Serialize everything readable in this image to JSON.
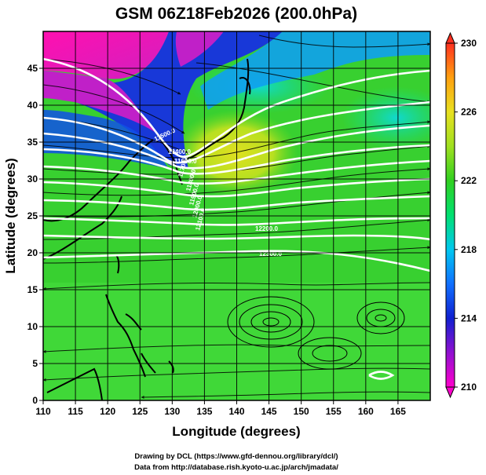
{
  "title": "GSM 06Z18Feb2026 (200.0hPa)",
  "x_axis": {
    "label": "Longitude (degrees)",
    "range": [
      110,
      170
    ],
    "ticks": [
      "110",
      "115",
      "120",
      "125",
      "130",
      "135",
      "140",
      "145",
      "150",
      "155",
      "160",
      "165"
    ]
  },
  "y_axis": {
    "label": "Latitude  (degrees)",
    "range": [
      0,
      50
    ],
    "ticks": [
      "0",
      "5",
      "10",
      "15",
      "20",
      "25",
      "30",
      "35",
      "40",
      "45"
    ]
  },
  "colorbar": {
    "range": [
      210,
      230
    ],
    "ticks": [
      "210",
      "214",
      "218",
      "222",
      "226",
      "230"
    ],
    "colors": [
      "#ff00cc",
      "#9010d0",
      "#1020d0",
      "#1070ff",
      "#00c8f0",
      "#00e070",
      "#30d020",
      "#a0e020",
      "#e8e020",
      "#ffa010",
      "#ff3020"
    ]
  },
  "contours": {
    "color": "#ffffff",
    "labels": [
      "11500.0",
      "11600.0",
      "11700.0",
      "11800.0",
      "11900.0",
      "12000.0",
      "12100.0",
      "12200.0",
      "12300.0",
      "12400.0"
    ]
  },
  "vortex_marker_color": "#ffffff",
  "credits": {
    "line1": "Drawing by DCL (https://www.gfd-dennou.org/library/dcl/)",
    "line2": "Data from http://database.rish.kyoto-u.ac.jp/arch/jmadata/"
  }
}
